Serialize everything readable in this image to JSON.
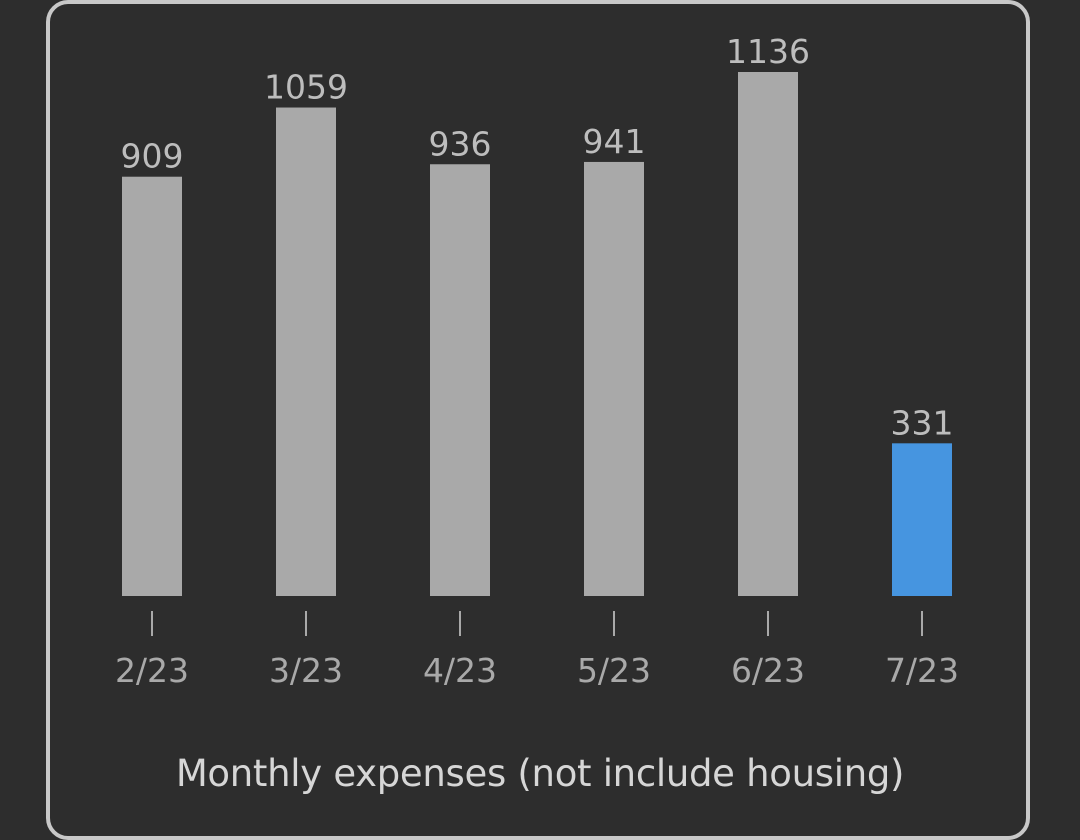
{
  "chart_data": {
    "type": "bar",
    "title": "",
    "xlabel": "",
    "ylabel": "",
    "categories": [
      "2/23",
      "3/23",
      "4/23",
      "5/23",
      "6/23",
      "7/23"
    ],
    "values": [
      909,
      1059,
      936,
      941,
      1136,
      331
    ],
    "highlight_index": 5,
    "grid": false,
    "legend": "none"
  },
  "caption": "Monthly expenses (not include housing)",
  "colors": {
    "background": "#2d2d2d",
    "card_border": "#c8c8c8",
    "bar_default": "#a9a9a9",
    "bar_highlight": "#4695e0",
    "value_label": "#bdbdbd",
    "tick_label": "#a9a9a9",
    "caption": "#d6d6d6"
  }
}
